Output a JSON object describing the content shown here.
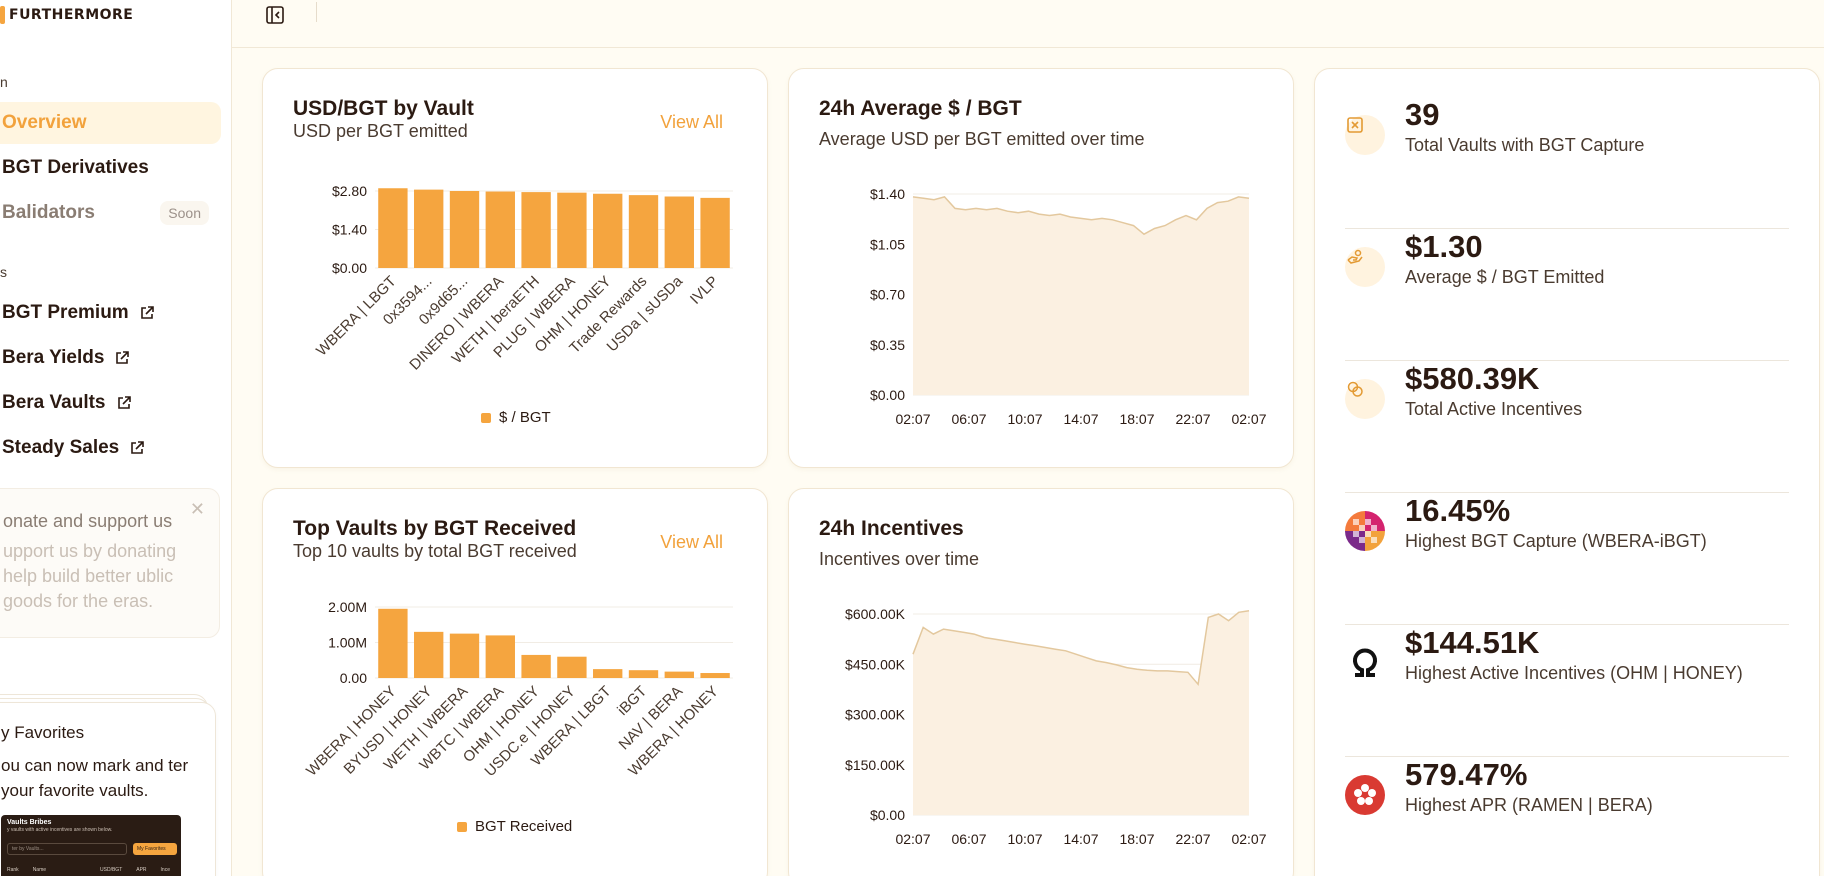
{
  "brand": {
    "name": "FURTHERMORE"
  },
  "sidebar": {
    "section1": "n",
    "section2": "s",
    "items": [
      {
        "label": "Overview"
      },
      {
        "label": "BGT Derivatives"
      },
      {
        "label": "Balidators",
        "badge": "Soon"
      },
      {
        "label": "BGT Premium"
      },
      {
        "label": "Bera Yields"
      },
      {
        "label": "Bera Vaults"
      },
      {
        "label": "Steady Sales"
      }
    ],
    "donate": {
      "title": "onate and support us",
      "body": "upport us by donating help build better ublic goods for the eras."
    },
    "favorites": {
      "title": "y Favorites",
      "body": "ou can now mark and ter your favorite vaults.",
      "preview": {
        "title": "Vaults Bribes",
        "subtitle": "y vaults with active incentives are shown below.",
        "search_placeholder": "ter by Vaults...",
        "button": "My Favorites",
        "columns": [
          "Rank",
          "Name",
          "USD/BGT",
          "APR",
          "Ince"
        ]
      }
    }
  },
  "cards": {
    "usd_bgt_by_vault": {
      "title": "USD/BGT by Vault",
      "subtitle": "USD per BGT emitted",
      "view_all": "View All",
      "legend": "$ / BGT"
    },
    "avg_usd_bgt": {
      "title": "24h Average $ / BGT",
      "subtitle": "Average USD per BGT emitted over time"
    },
    "top_vaults": {
      "title": "Top Vaults by BGT Received",
      "subtitle": "Top 10 vaults by total BGT received",
      "view_all": "View All",
      "legend": "BGT Received"
    },
    "incentives": {
      "title": "24h Incentives",
      "subtitle": "Incentives over time"
    }
  },
  "stats": [
    {
      "value": "39",
      "label": "Total Vaults with BGT Capture",
      "icon": "vault-icon"
    },
    {
      "value": "$1.30",
      "label": "Average $ / BGT Emitted",
      "icon": "hand-coin-icon"
    },
    {
      "value": "$580.39K",
      "label": "Total Active Incentives",
      "icon": "coins-icon"
    },
    {
      "value": "16.45%",
      "label": "Highest BGT Capture (WBERA-iBGT)",
      "icon": "checker-token-icon"
    },
    {
      "value": "$144.51K",
      "label": "Highest Active Incentives (OHM | HONEY)",
      "icon": "ohm-icon"
    },
    {
      "value": "579.47%",
      "label": "Highest APR (RAMEN | BERA)",
      "icon": "ramen-icon"
    }
  ],
  "chart_data": [
    {
      "type": "bar",
      "categories": [
        "WBERA | LBGT",
        "0x3594...",
        "0x9d65...",
        "DINERO | WBERA",
        "WETH | beraETH",
        "PLUG | WBERA",
        "OHM | HONEY",
        "Trade Rewards",
        "USDa | sUSDa",
        "IVLP"
      ],
      "series": [
        {
          "name": "$ / BGT",
          "values": [
            2.9,
            2.85,
            2.8,
            2.78,
            2.76,
            2.74,
            2.7,
            2.65,
            2.6,
            2.55
          ]
        }
      ],
      "yticks": [
        "$0.00",
        "$1.40",
        "$2.80"
      ],
      "ylim": [
        0,
        2.8
      ],
      "legend": "bottom-center",
      "grid": true,
      "color": "#f5a53f"
    },
    {
      "type": "area",
      "x_ticks": [
        "02:07",
        "06:07",
        "10:07",
        "14:07",
        "18:07",
        "22:07",
        "02:07"
      ],
      "yticks": [
        "$0.00",
        "$0.35",
        "$0.70",
        "$1.05",
        "$1.40"
      ],
      "ylim": [
        0,
        1.4
      ],
      "series": [
        {
          "values": [
            1.38,
            1.37,
            1.36,
            1.38,
            1.3,
            1.29,
            1.3,
            1.29,
            1.3,
            1.28,
            1.27,
            1.28,
            1.26,
            1.25,
            1.26,
            1.24,
            1.23,
            1.22,
            1.23,
            1.22,
            1.2,
            1.18,
            1.12,
            1.16,
            1.18,
            1.22,
            1.25,
            1.22,
            1.3,
            1.34,
            1.35,
            1.38,
            1.37
          ]
        }
      ],
      "grid": true,
      "color": "#e3c89e"
    },
    {
      "type": "bar",
      "categories": [
        "WBERA | HONEY",
        "BYUSD | HONEY",
        "WETH | WBERA",
        "WBTC | WBERA",
        "OHM | HONEY",
        "USDC.e | HONEY",
        "WBERA | LBGT",
        "iBGT",
        "NAV | BERA",
        "WBERA | HONEY"
      ],
      "series": [
        {
          "name": "BGT Received",
          "values": [
            1.95,
            1.3,
            1.25,
            1.2,
            0.65,
            0.6,
            0.25,
            0.22,
            0.18,
            0.14
          ]
        }
      ],
      "yticks": [
        "0.00",
        "1.00M",
        "2.00M"
      ],
      "ylim": [
        0,
        2.0
      ],
      "legend": "bottom-center",
      "grid": true,
      "color": "#f5a53f"
    },
    {
      "type": "area",
      "x_ticks": [
        "02:07",
        "06:07",
        "10:07",
        "14:07",
        "18:07",
        "22:07",
        "02:07"
      ],
      "yticks": [
        "$0.00",
        "$150.00K",
        "$300.00K",
        "$450.00K",
        "$600.00K"
      ],
      "ylim": [
        0,
        600
      ],
      "series": [
        {
          "values": [
            480,
            560,
            540,
            555,
            550,
            545,
            540,
            530,
            525,
            520,
            515,
            510,
            505,
            500,
            495,
            490,
            480,
            470,
            460,
            455,
            448,
            440,
            435,
            432,
            430,
            430,
            428,
            426,
            390,
            590,
            600,
            580,
            605,
            610
          ]
        }
      ],
      "grid": true,
      "color": "#e3c89e"
    }
  ]
}
